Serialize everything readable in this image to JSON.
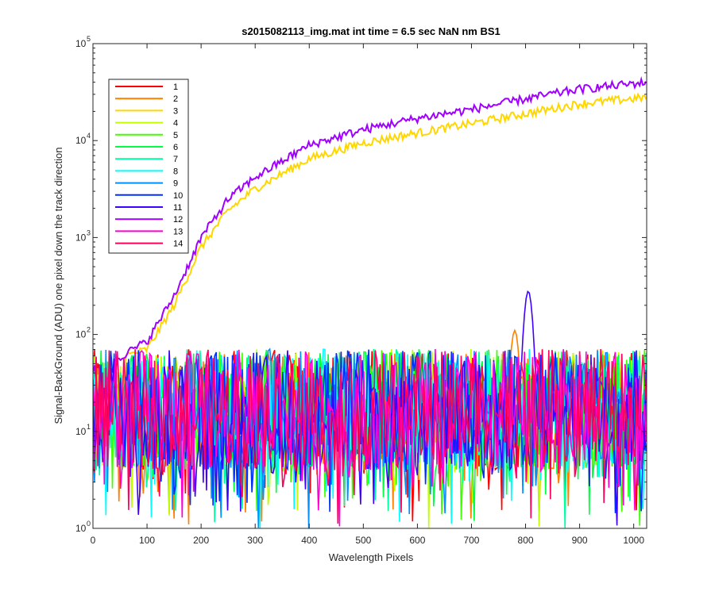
{
  "chart_data": {
    "type": "line",
    "title": "s2015082113_img.mat int time = 6.5 sec  NaN nm BS1",
    "xlabel": "Wavelength Pixels",
    "ylabel": "Signal-BackGround (ADU) one pixel down the track direction",
    "xlim": [
      0,
      1024
    ],
    "ylim": [
      1,
      100000
    ],
    "yscale": "log",
    "grid": false,
    "legend_position": "top-left",
    "x_ticks": [
      "0",
      "100",
      "200",
      "300",
      "400",
      "500",
      "600",
      "700",
      "800",
      "900",
      "1000"
    ],
    "y_ticks": [
      {
        "base": "10",
        "exp": "0"
      },
      {
        "base": "10",
        "exp": "1"
      },
      {
        "base": "10",
        "exp": "2"
      },
      {
        "base": "10",
        "exp": "3"
      },
      {
        "base": "10",
        "exp": "4"
      },
      {
        "base": "10",
        "exp": "5"
      }
    ],
    "series": [
      {
        "name": "1",
        "color": "#ff0000",
        "kind": "noise"
      },
      {
        "name": "2",
        "color": "#ff7f00",
        "kind": "noise",
        "peak": {
          "x": 780,
          "y": 110
        }
      },
      {
        "name": "3",
        "color": "#ffd700",
        "kind": "signal",
        "x": [
          60,
          100,
          150,
          200,
          250,
          300,
          400,
          500,
          600,
          700,
          800,
          900,
          1024
        ],
        "y": [
          60,
          70,
          200,
          800,
          1900,
          3200,
          6500,
          9500,
          12000,
          15000,
          19000,
          24000,
          28000
        ]
      },
      {
        "name": "4",
        "color": "#bfff00",
        "kind": "noise"
      },
      {
        "name": "5",
        "color": "#40ff00",
        "kind": "noise"
      },
      {
        "name": "6",
        "color": "#00ff40",
        "kind": "noise"
      },
      {
        "name": "7",
        "color": "#00ffa0",
        "kind": "noise"
      },
      {
        "name": "8",
        "color": "#00ffff",
        "kind": "noise"
      },
      {
        "name": "9",
        "color": "#0090ff",
        "kind": "noise"
      },
      {
        "name": "10",
        "color": "#0030ff",
        "kind": "noise"
      },
      {
        "name": "11",
        "color": "#4000ff",
        "kind": "noise",
        "peak": {
          "x": 805,
          "y": 280
        }
      },
      {
        "name": "12",
        "color": "#a000ff",
        "kind": "signal",
        "x": [
          40,
          100,
          150,
          200,
          250,
          300,
          400,
          500,
          600,
          700,
          800,
          900,
          1024
        ],
        "y": [
          55,
          85,
          250,
          1000,
          2500,
          4200,
          9000,
          13000,
          17000,
          21000,
          27000,
          34000,
          40000
        ]
      },
      {
        "name": "13",
        "color": "#ff00d0",
        "kind": "noise"
      },
      {
        "name": "14",
        "color": "#ff0060",
        "kind": "noise"
      }
    ]
  }
}
